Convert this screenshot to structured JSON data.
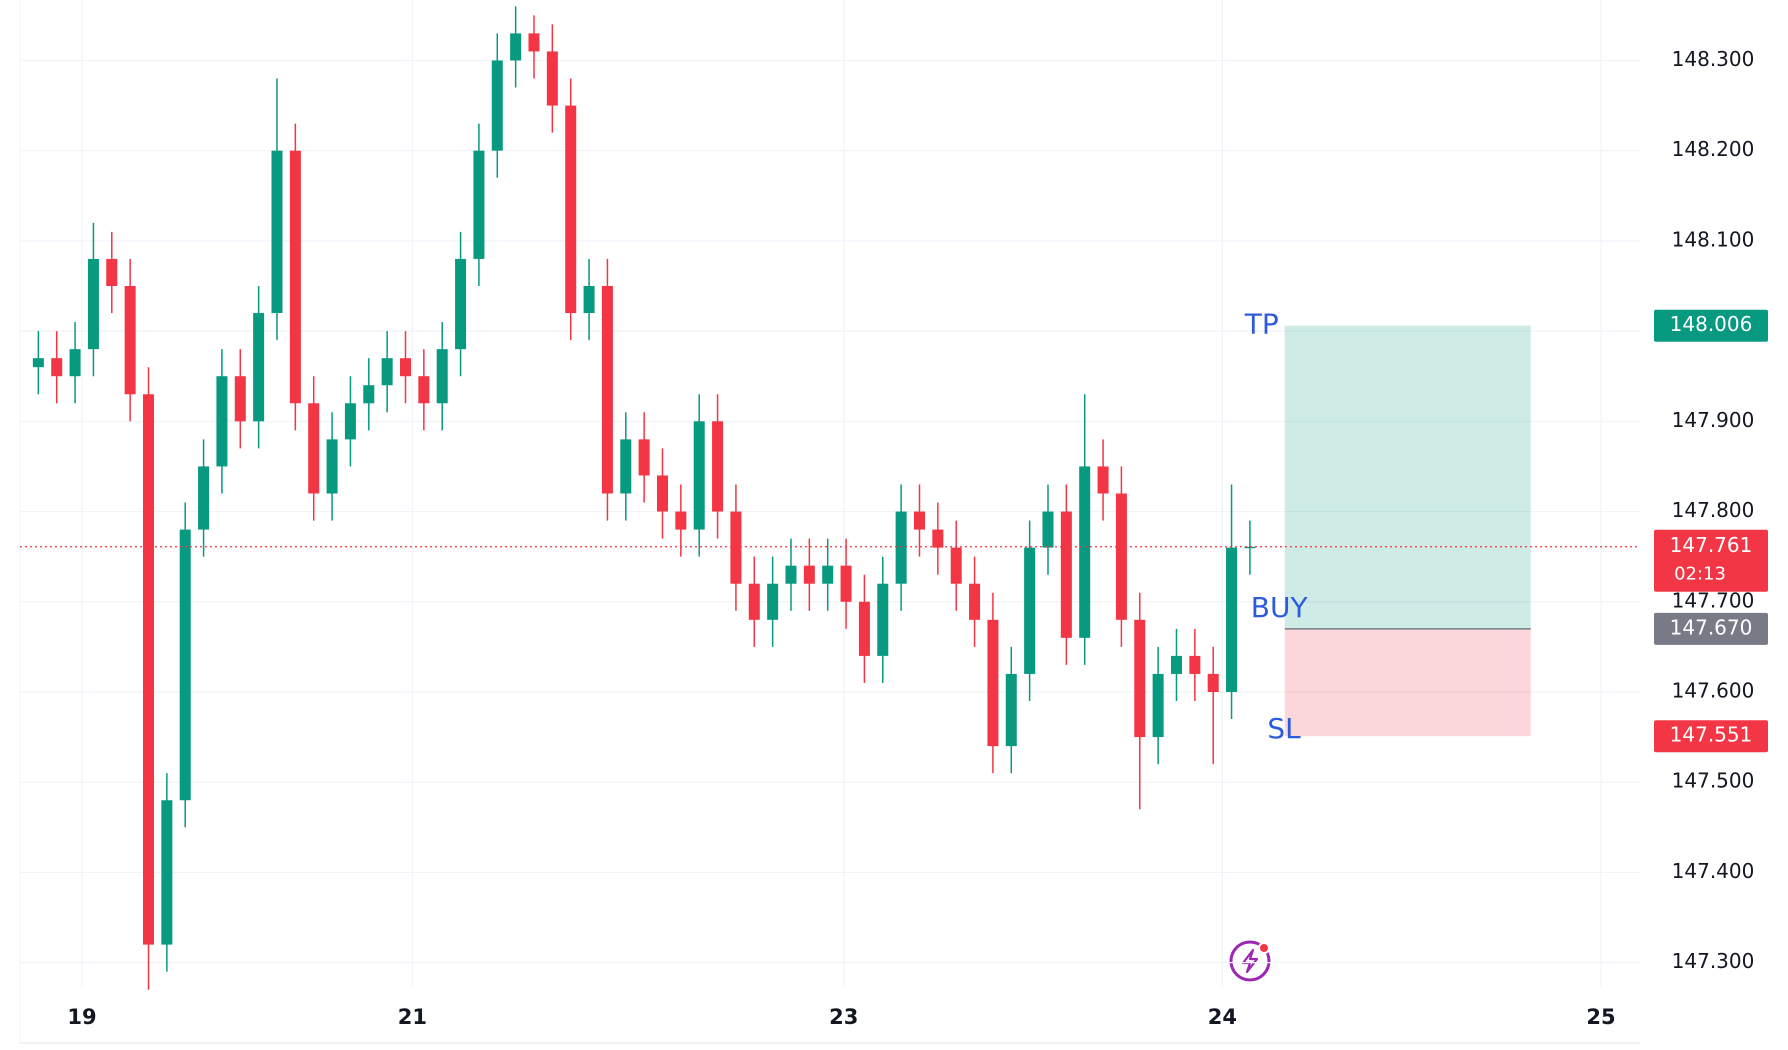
{
  "chart_data": {
    "type": "candlestick",
    "up_color": "#089981",
    "down_color": "#f23645",
    "grid": true,
    "xlim": [
      -1,
      87.25
    ],
    "xticks": [
      {
        "value": 2.375,
        "label": "19"
      },
      {
        "value": 20.375,
        "label": "21"
      },
      {
        "value": 43.875,
        "label": "23"
      },
      {
        "value": 64.5,
        "label": "24"
      },
      {
        "value": 85.125,
        "label": "25"
      }
    ],
    "ylim": [
      147.273,
      148.367
    ],
    "yticks": [
      {
        "value": 147.3,
        "label": "147.300"
      },
      {
        "value": 147.4,
        "label": "147.400"
      },
      {
        "value": 147.5,
        "label": "147.500"
      },
      {
        "value": 147.6,
        "label": "147.600"
      },
      {
        "value": 147.7,
        "label": "147.700"
      },
      {
        "value": 147.8,
        "label": "147.800"
      },
      {
        "value": 147.9,
        "label": "147.900"
      },
      {
        "value": 148.0,
        "label": "148.000"
      },
      {
        "value": 148.1,
        "label": "148.100"
      },
      {
        "value": 148.2,
        "label": "148.200"
      },
      {
        "value": 148.3,
        "label": "148.300"
      }
    ],
    "open": [
      147.96,
      147.97,
      147.95,
      147.98,
      148.08,
      148.05,
      147.93,
      147.32,
      147.48,
      147.78,
      147.85,
      147.95,
      147.9,
      148.02,
      148.2,
      147.92,
      147.82,
      147.88,
      147.92,
      147.94,
      147.97,
      147.95,
      147.92,
      147.98,
      148.08,
      148.2,
      148.3,
      148.33,
      148.31,
      148.25,
      148.02,
      148.05,
      147.82,
      147.88,
      147.84,
      147.8,
      147.78,
      147.9,
      147.8,
      147.72,
      147.68,
      147.72,
      147.74,
      147.72,
      147.74,
      147.7,
      147.64,
      147.72,
      147.8,
      147.78,
      147.76,
      147.72,
      147.68,
      147.54,
      147.62,
      147.76,
      147.8,
      147.66,
      147.85,
      147.82,
      147.68,
      147.55,
      147.62,
      147.64,
      147.62,
      147.6,
      147.76
    ],
    "high": [
      148.0,
      148.0,
      148.01,
      148.12,
      148.11,
      148.08,
      147.96,
      147.51,
      147.81,
      147.88,
      147.98,
      147.98,
      148.05,
      148.28,
      148.23,
      147.95,
      147.91,
      147.95,
      147.97,
      148.0,
      148.0,
      147.98,
      148.01,
      148.11,
      148.23,
      148.33,
      148.36,
      148.35,
      148.34,
      148.28,
      148.08,
      148.08,
      147.91,
      147.91,
      147.87,
      147.83,
      147.93,
      147.93,
      147.83,
      147.75,
      147.75,
      147.77,
      147.77,
      147.77,
      147.77,
      147.73,
      147.75,
      147.83,
      147.83,
      147.81,
      147.79,
      147.75,
      147.71,
      147.65,
      147.79,
      147.83,
      147.83,
      147.93,
      147.88,
      147.85,
      147.71,
      147.65,
      147.67,
      147.67,
      147.65,
      147.83,
      147.79
    ],
    "low": [
      147.93,
      147.92,
      147.92,
      147.95,
      148.02,
      147.9,
      147.27,
      147.29,
      147.45,
      147.75,
      147.82,
      147.87,
      147.87,
      147.99,
      147.89,
      147.79,
      147.79,
      147.85,
      147.89,
      147.91,
      147.92,
      147.89,
      147.89,
      147.95,
      148.05,
      148.17,
      148.27,
      148.28,
      148.22,
      147.99,
      147.99,
      147.79,
      147.79,
      147.81,
      147.77,
      147.75,
      147.75,
      147.77,
      147.69,
      147.65,
      147.65,
      147.69,
      147.69,
      147.69,
      147.67,
      147.61,
      147.61,
      147.69,
      147.75,
      147.73,
      147.69,
      147.65,
      147.51,
      147.51,
      147.59,
      147.73,
      147.63,
      147.63,
      147.79,
      147.65,
      147.47,
      147.52,
      147.59,
      147.59,
      147.52,
      147.57,
      147.73
    ],
    "close": [
      147.97,
      147.95,
      147.98,
      148.08,
      148.05,
      147.93,
      147.32,
      147.48,
      147.78,
      147.85,
      147.95,
      147.9,
      148.02,
      148.2,
      147.92,
      147.82,
      147.88,
      147.92,
      147.94,
      147.97,
      147.95,
      147.92,
      147.98,
      148.08,
      148.2,
      148.3,
      148.33,
      148.31,
      148.25,
      148.02,
      148.05,
      147.82,
      147.88,
      147.84,
      147.8,
      147.78,
      147.9,
      147.8,
      147.72,
      147.68,
      147.72,
      147.74,
      147.72,
      147.74,
      147.7,
      147.64,
      147.72,
      147.8,
      147.78,
      147.76,
      147.72,
      147.68,
      147.54,
      147.62,
      147.76,
      147.8,
      147.66,
      147.85,
      147.82,
      147.68,
      147.55,
      147.62,
      147.64,
      147.62,
      147.6,
      147.76,
      147.761
    ],
    "position": {
      "labels": [
        "TP",
        "BUY",
        "SL"
      ],
      "values": [
        148.006,
        147.67,
        147.551
      ],
      "value_labels": [
        "148.006",
        "147.670",
        "147.551"
      ],
      "start": 67.9,
      "end": 81.3
    },
    "last_price": {
      "value": 147.761,
      "countdown": "02:13"
    }
  }
}
